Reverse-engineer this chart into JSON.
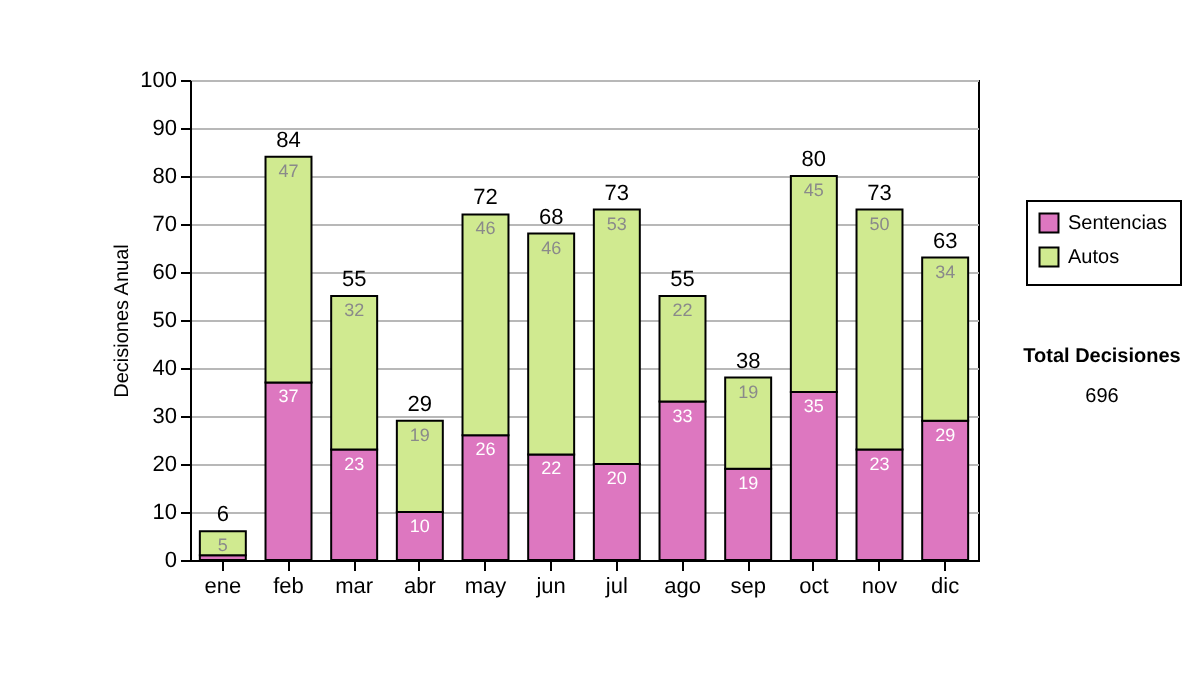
{
  "chart_data": {
    "type": "bar",
    "stacked": true,
    "ylabel": "Decisiones Anual",
    "categories": [
      "ene",
      "feb",
      "mar",
      "abr",
      "may",
      "jun",
      "jul",
      "ago",
      "sep",
      "oct",
      "nov",
      "dic"
    ],
    "series": [
      {
        "name": "Sentencias",
        "color": "#dd77c0",
        "values": [
          1,
          37,
          23,
          10,
          26,
          22,
          20,
          33,
          19,
          35,
          23,
          29
        ],
        "value_labels": [
          null,
          "37",
          "23",
          "10",
          "26",
          "22",
          "20",
          "33",
          "19",
          "35",
          "23",
          "29"
        ]
      },
      {
        "name": "Autos",
        "color": "#d0ea90",
        "values": [
          5,
          47,
          32,
          19,
          46,
          46,
          53,
          22,
          19,
          45,
          50,
          34
        ],
        "value_labels": [
          "5",
          "47",
          "32",
          "19",
          "46",
          "46",
          "53",
          "22",
          "19",
          "45",
          "50",
          "34"
        ]
      }
    ],
    "totals": [
      "6",
      "84",
      "55",
      "29",
      "72",
      "68",
      "73",
      "55",
      "38",
      "80",
      "73",
      "63"
    ],
    "ylim": [
      0,
      100
    ],
    "yticks": [
      0,
      10,
      20,
      30,
      40,
      50,
      60,
      70,
      80,
      90,
      100
    ],
    "grid": "y",
    "legend": "right",
    "annotations": [
      "Total Decisiones",
      "696"
    ]
  }
}
